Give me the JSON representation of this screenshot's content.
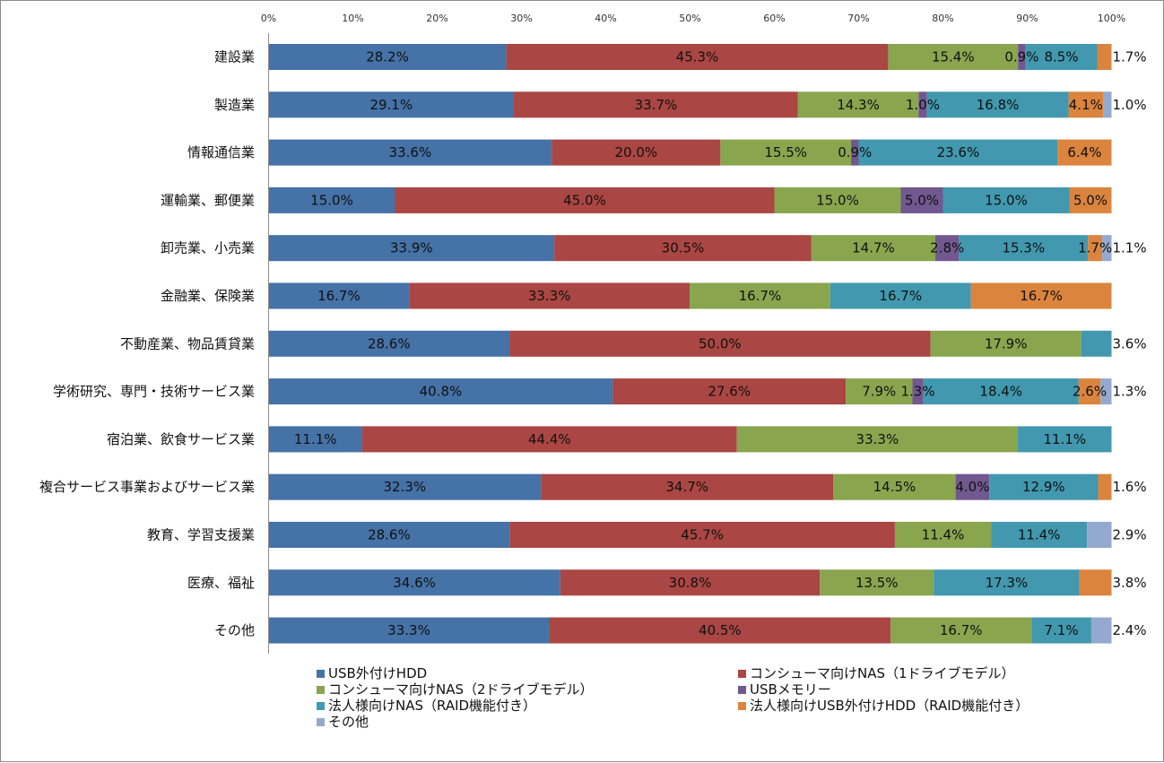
{
  "chart_data": {
    "type": "bar",
    "orientation": "horizontal",
    "stacked": "percent",
    "title": "",
    "xlabel": "",
    "ylabel": "",
    "xlim": [
      0,
      100
    ],
    "x_ticks": [
      "0%",
      "10%",
      "20%",
      "30%",
      "40%",
      "50%",
      "60%",
      "70%",
      "80%",
      "90%",
      "100%"
    ],
    "grid": false,
    "legend_position": "bottom",
    "categories": [
      "建設業",
      "製造業",
      "情報通信業",
      "運輸業、郵便業",
      "卸売業、小売業",
      "金融業、保険業",
      "不動産業、物品賃貸業",
      "学術研究、専門・技術サービス業",
      "宿泊業、飲食サービス業",
      "複合サービス事業およびサービス業",
      "教育、学習支援業",
      "医療、福祉",
      "その他"
    ],
    "series": [
      {
        "name": "USB外付けHDD",
        "color": "#4572a7",
        "values": [
          28.2,
          29.1,
          33.6,
          15.0,
          33.9,
          16.7,
          28.6,
          40.8,
          11.1,
          32.3,
          28.6,
          34.6,
          33.3
        ],
        "labels": [
          "28.2%",
          "29.1%",
          "33.6%",
          "15.0%",
          "33.9%",
          "16.7%",
          "28.6%",
          "40.8%",
          "11.1%",
          "32.3%",
          "28.6%",
          "34.6%",
          "33.3%"
        ]
      },
      {
        "name": "コンシューマ向けNAS（1ドライブモデル）",
        "color": "#aa4643",
        "values": [
          45.3,
          33.7,
          20.0,
          45.0,
          30.5,
          33.3,
          50.0,
          27.6,
          44.4,
          34.7,
          45.7,
          30.8,
          40.5
        ],
        "labels": [
          "45.3%",
          "33.7%",
          "20.0%",
          "45.0%",
          "30.5%",
          "33.3%",
          "50.0%",
          "27.6%",
          "44.4%",
          "34.7%",
          "45.7%",
          "30.8%",
          "40.5%"
        ]
      },
      {
        "name": "コンシューマ向けNAS（2ドライブモデル）",
        "color": "#89a54e",
        "values": [
          15.4,
          14.3,
          15.5,
          15.0,
          14.7,
          16.7,
          17.9,
          7.9,
          33.3,
          14.5,
          11.4,
          13.5,
          16.7
        ],
        "labels": [
          "15.4%",
          "14.3%",
          "15.5%",
          "15.0%",
          "14.7%",
          "16.7%",
          "17.9%",
          "7.9%",
          "33.3%",
          "14.5%",
          "11.4%",
          "13.5%",
          "16.7%"
        ]
      },
      {
        "name": "USBメモリー",
        "color": "#71588f",
        "values": [
          0.9,
          1.0,
          0.9,
          5.0,
          2.8,
          0,
          0,
          1.3,
          0,
          4.0,
          0,
          0,
          0
        ],
        "labels": [
          "0.9%",
          "1.0%",
          "0.9%",
          "5.0%",
          "2.8%",
          "",
          "",
          "1.3%",
          "",
          "4.0%",
          "",
          "",
          ""
        ]
      },
      {
        "name": "法人様向けNAS（RAID機能付き）",
        "color": "#4198af",
        "values": [
          8.5,
          16.8,
          23.6,
          15.0,
          15.3,
          16.7,
          3.6,
          18.4,
          11.1,
          12.9,
          11.4,
          17.3,
          7.1
        ],
        "labels": [
          "8.5%",
          "16.8%",
          "23.6%",
          "15.0%",
          "15.3%",
          "16.7%",
          "3.6%",
          "18.4%",
          "11.1%",
          "12.9%",
          "11.4%",
          "17.3%",
          "7.1%"
        ]
      },
      {
        "name": "法人様向けUSB外付けHDD（RAID機能付き）",
        "color": "#db843d",
        "values": [
          1.7,
          4.1,
          6.4,
          5.0,
          1.7,
          16.7,
          0,
          2.6,
          0,
          1.6,
          0,
          3.8,
          0
        ],
        "labels": [
          "1.7%",
          "4.1%",
          "6.4%",
          "5.0%",
          "1.7%",
          "16.7%",
          "",
          "2.6%",
          "",
          "1.6%",
          "",
          "3.8%",
          ""
        ]
      },
      {
        "name": "その他",
        "color": "#93a9cf",
        "values": [
          0,
          1.0,
          0,
          0,
          1.1,
          0,
          0,
          1.3,
          0,
          0,
          2.9,
          0,
          2.4
        ],
        "labels": [
          "",
          "1.0%",
          "",
          "",
          "1.1%",
          "",
          "",
          "1.3%",
          "",
          "",
          "2.9%",
          "",
          "2.4%"
        ]
      }
    ]
  }
}
